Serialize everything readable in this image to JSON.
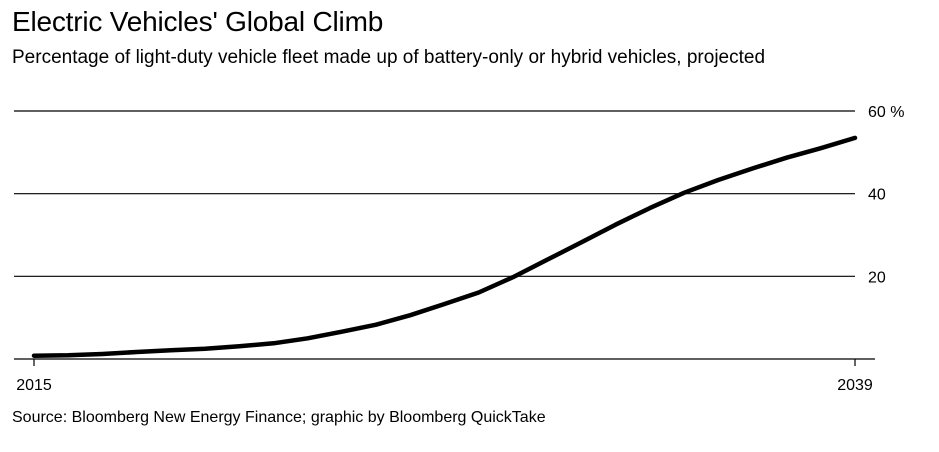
{
  "header": {
    "title": "Electric Vehicles' Global Climb",
    "subtitle": "Percentage of light-duty vehicle fleet made up of battery-only or hybrid vehicles, projected"
  },
  "footer": {
    "source": "Source: Bloomberg New Energy Finance; graphic by Bloomberg QuickTake"
  },
  "chart_data": {
    "type": "line",
    "title": "Electric Vehicles' Global Climb",
    "subtitle": "Percentage of light-duty vehicle fleet made up of battery-only or hybrid vehicles, projected",
    "xlabel": "",
    "ylabel": "",
    "xlim": [
      2015,
      2039
    ],
    "ylim": [
      0,
      60
    ],
    "x_tick_labels": [
      "2015",
      "2039"
    ],
    "y_ticks": [
      {
        "value": 20,
        "label": "20"
      },
      {
        "value": 40,
        "label": "40"
      },
      {
        "value": 60,
        "label": "60 %"
      }
    ],
    "grid": true,
    "series": [
      {
        "x": [
          2015,
          2016,
          2017,
          2018,
          2019,
          2020,
          2021,
          2022,
          2023,
          2024,
          2025,
          2026,
          2027,
          2028,
          2029,
          2030,
          2031,
          2032,
          2033,
          2034,
          2035,
          2036,
          2037,
          2038,
          2039
        ],
        "values": [
          0.8,
          0.9,
          1.2,
          1.7,
          2.1,
          2.5,
          3.1,
          3.8,
          5.0,
          6.6,
          8.3,
          10.6,
          13.3,
          16.1,
          19.8,
          24.0,
          28.2,
          32.5,
          36.5,
          40.2,
          43.3,
          46.1,
          48.7,
          51.0,
          53.5
        ]
      }
    ],
    "colors": {
      "line": "#000000",
      "grid": "#000000",
      "background": "#ffffff"
    }
  }
}
